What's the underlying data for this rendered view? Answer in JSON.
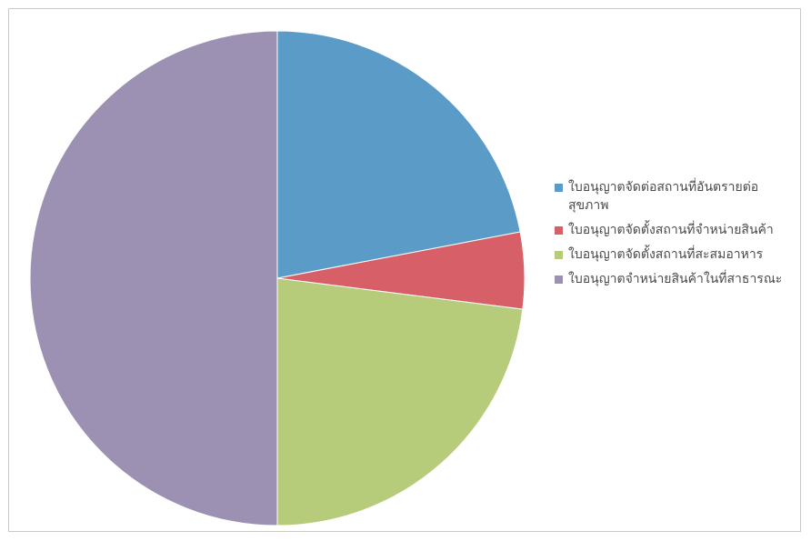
{
  "chart_data": {
    "type": "pie",
    "title": "",
    "legend_position": "right",
    "slices": [
      {
        "label": "ใบอนุญาตจัดต่อสถานที่อันตรายต่อสุขภาพ",
        "value": 22,
        "color": "#5b9bc8"
      },
      {
        "label": "ใบอนุญาตจัดตั้งสถานที่จำหน่ายสินค้า",
        "value": 5,
        "color": "#d65f68"
      },
      {
        "label": "ใบอนุญาตจัดตั้งสถานที่สะสมอาหาร",
        "value": 23,
        "color": "#b6cc7b"
      },
      {
        "label": "ใบอนุญาตจำหน่ายสินค้าในที่สาธารณะ",
        "value": 50,
        "color": "#9d91b3"
      }
    ]
  }
}
